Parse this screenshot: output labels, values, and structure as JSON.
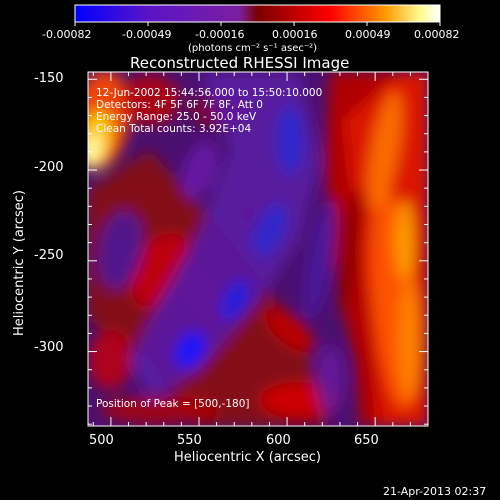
{
  "colorbar": {
    "tick_labels": [
      "-0.00082",
      "-0.00049",
      "-0.00016",
      "0.00016",
      "0.00049",
      "0.00082"
    ],
    "unit_label": "(photons cm⁻² s⁻¹ asec⁻²)",
    "colors": [
      "#0000ff",
      "#5a14c8",
      "#7a1fa0",
      "#7a0000",
      "#ff0000",
      "#ff9900",
      "#ffff99",
      "#ffffff"
    ]
  },
  "title": "Reconstructed RHESSI Image",
  "info": {
    "time": "12-Jun-2002 15:44:56.000 to 15:50:10.000",
    "detectors": "Detectors: 4F 5F 6F 7F 8F, Att 0",
    "energy": "Energy Range: 25.0 - 50.0 keV",
    "method_counts": "Clean     Total counts: 3.92E+04"
  },
  "peak_label": "Position of Peak = [500,-180]",
  "timestamp": "21-Apr-2013 02:37",
  "chart_data": {
    "type": "heatmap",
    "title": "Reconstructed RHESSI Image",
    "xlabel": "Heliocentric X (arcsec)",
    "ylabel": "Heliocentric Y (arcsec)",
    "xlim": [
      487,
      680
    ],
    "ylim": [
      -341,
      -146
    ],
    "xticks": [
      500,
      550,
      600,
      650
    ],
    "yticks": [
      -150,
      -200,
      -250,
      -300
    ],
    "xtick_labels": [
      "500",
      "550",
      "600",
      "650"
    ],
    "ytick_labels": [
      "-150",
      "-200",
      "-250",
      "-300"
    ],
    "value_range": [
      -0.00082,
      0.00082
    ],
    "peak": [
      500,
      -180
    ]
  }
}
